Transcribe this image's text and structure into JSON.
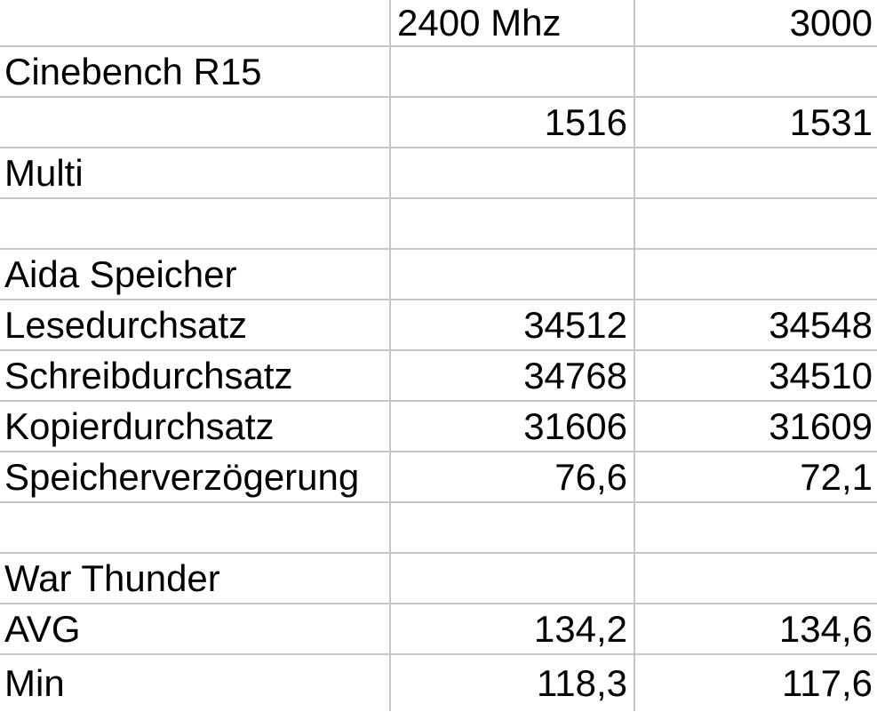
{
  "colors": {
    "background": "#ffffff",
    "gridline": "#c6c6c6",
    "text": "#000000"
  },
  "table": {
    "header": {
      "label": "",
      "col_2400": "2400 Mhz",
      "col_3000": "3000"
    },
    "rows": [
      {
        "label": "Cinebench R15",
        "v2400": "",
        "v3000": ""
      },
      {
        "label": "",
        "v2400": "1516",
        "v3000": "1531"
      },
      {
        "label": "Multi",
        "v2400": "",
        "v3000": ""
      },
      {
        "label": "",
        "v2400": "",
        "v3000": ""
      },
      {
        "label": "Aida Speicher",
        "v2400": "",
        "v3000": ""
      },
      {
        "label": "Lesedurchsatz",
        "v2400": "34512",
        "v3000": "34548"
      },
      {
        "label": "Schreibdurchsatz",
        "v2400": "34768",
        "v3000": "34510"
      },
      {
        "label": "Kopierdurchsatz",
        "v2400": "31606",
        "v3000": "31609"
      },
      {
        "label": "Speicherverzögerung",
        "v2400": "76,6",
        "v3000": "72,1"
      },
      {
        "label": "",
        "v2400": "",
        "v3000": ""
      },
      {
        "label": "War Thunder",
        "v2400": "",
        "v3000": ""
      },
      {
        "label": "AVG",
        "v2400": "134,2",
        "v3000": "134,6"
      },
      {
        "label": "Min",
        "v2400": "118,3",
        "v3000": "117,6"
      }
    ]
  }
}
